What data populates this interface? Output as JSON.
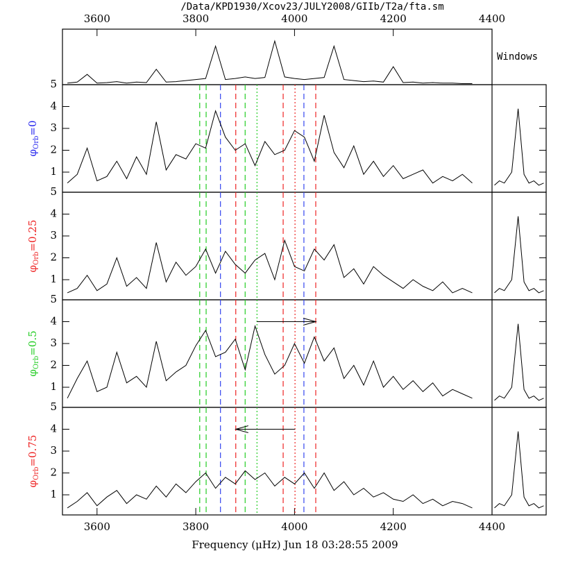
{
  "chart_data": {
    "type": "line",
    "title": "/Data/KPD1930/Xcov23/JULY2008/GIIb/T2a/fta.sm",
    "xlabel": "Frequency (μHz) Jun 18 03:28:55 2009",
    "window_label": "Windows",
    "line_color": "#000000",
    "xlim": [
      3530,
      4400
    ],
    "xticks": [
      3600,
      3800,
      4000,
      4200,
      4400
    ],
    "ylim": [
      0.08,
      5
    ],
    "yticks": [
      1,
      2,
      3,
      4,
      5
    ],
    "x": [
      3540,
      3560,
      3580,
      3600,
      3620,
      3640,
      3660,
      3680,
      3700,
      3720,
      3740,
      3760,
      3780,
      3800,
      3820,
      3840,
      3860,
      3880,
      3900,
      3920,
      3940,
      3960,
      3980,
      4000,
      4020,
      4040,
      4060,
      4080,
      4100,
      4120,
      4140,
      4160,
      4180,
      4200,
      4220,
      4240,
      4260,
      4280,
      4300,
      4320,
      4340,
      4360
    ],
    "top_ylim": [
      0,
      1
    ],
    "top_values": [
      0.03,
      0.05,
      0.2,
      0.03,
      0.04,
      0.06,
      0.03,
      0.05,
      0.04,
      0.3,
      0.05,
      0.06,
      0.08,
      0.1,
      0.12,
      0.75,
      0.1,
      0.12,
      0.15,
      0.12,
      0.14,
      0.85,
      0.15,
      0.12,
      0.1,
      0.12,
      0.14,
      0.75,
      0.1,
      0.08,
      0.06,
      0.07,
      0.05,
      0.35,
      0.04,
      0.05,
      0.03,
      0.04,
      0.03,
      0.03,
      0.02,
      0.02
    ],
    "window_xlim": [
      4400,
      4510
    ],
    "window_x": [
      4405,
      4415,
      4425,
      4440,
      4453,
      4465,
      4475,
      4485,
      4495,
      4505
    ],
    "window_values": [
      0.4,
      0.6,
      0.5,
      1.0,
      3.9,
      0.9,
      0.5,
      0.6,
      0.4,
      0.5
    ],
    "markers": [
      {
        "x": 3808,
        "color": "#22cc22",
        "style": "dashed"
      },
      {
        "x": 3821,
        "color": "#22cc22",
        "style": "dashed"
      },
      {
        "x": 3850,
        "color": "#3344ee",
        "style": "dashed"
      },
      {
        "x": 3881,
        "color": "#ee2222",
        "style": "dashed"
      },
      {
        "x": 3900,
        "color": "#22cc22",
        "style": "dashed"
      },
      {
        "x": 3924,
        "color": "#22cc22",
        "style": "dotted"
      },
      {
        "x": 3977,
        "color": "#ee2222",
        "style": "dashed"
      },
      {
        "x": 4001,
        "color": "#ee2222",
        "style": "dotted"
      },
      {
        "x": 4019,
        "color": "#3344ee",
        "style": "dashed"
      },
      {
        "x": 4043,
        "color": "#ee2222",
        "style": "dashed"
      }
    ],
    "panels": [
      {
        "label": {
          "symbol": "φ",
          "sub": "Orb",
          "value": "=0"
        },
        "color": "#2222ee",
        "values": [
          0.5,
          0.9,
          2.1,
          0.6,
          0.8,
          1.5,
          0.7,
          1.7,
          0.9,
          3.3,
          1.1,
          1.8,
          1.6,
          2.3,
          2.1,
          3.8,
          2.6,
          2.0,
          2.3,
          1.3,
          2.4,
          1.8,
          2.0,
          2.9,
          2.6,
          1.5,
          3.6,
          1.9,
          1.2,
          2.2,
          0.9,
          1.5,
          0.8,
          1.3,
          0.7,
          0.9,
          1.1,
          0.5,
          0.8,
          0.6,
          0.9,
          0.5
        ]
      },
      {
        "label": {
          "symbol": "φ",
          "sub": "Orb",
          "value": "=0.25"
        },
        "color": "#ee2222",
        "values": [
          0.4,
          0.6,
          1.2,
          0.5,
          0.8,
          2.0,
          0.7,
          1.1,
          0.6,
          2.7,
          0.9,
          1.8,
          1.2,
          1.6,
          2.4,
          1.3,
          2.3,
          1.7,
          1.3,
          1.9,
          2.2,
          1.0,
          2.8,
          1.6,
          1.4,
          2.4,
          1.9,
          2.6,
          1.1,
          1.5,
          0.8,
          1.6,
          1.2,
          0.9,
          0.6,
          1.0,
          0.7,
          0.5,
          0.9,
          0.4,
          0.6,
          0.4
        ]
      },
      {
        "label": {
          "symbol": "φ",
          "sub": "Orb",
          "value": "=0.5"
        },
        "color": "#22cc22",
        "values": [
          0.5,
          1.4,
          2.2,
          0.8,
          1.0,
          2.6,
          1.2,
          1.5,
          1.0,
          3.1,
          1.3,
          1.7,
          2.0,
          2.9,
          3.6,
          2.4,
          2.6,
          3.2,
          1.8,
          3.8,
          2.5,
          1.6,
          2.0,
          3.0,
          2.1,
          3.3,
          2.2,
          2.8,
          1.4,
          2.0,
          1.1,
          2.2,
          1.0,
          1.5,
          0.9,
          1.3,
          0.8,
          1.2,
          0.6,
          0.9,
          0.7,
          0.5
        ],
        "arrow": {
          "from": 3924,
          "to": 4043,
          "y": 4
        }
      },
      {
        "label": {
          "symbol": "φ",
          "sub": "Orb",
          "value": "=0.75"
        },
        "color": "#ee2222",
        "values": [
          0.4,
          0.7,
          1.1,
          0.5,
          0.9,
          1.2,
          0.6,
          1.0,
          0.8,
          1.4,
          0.9,
          1.5,
          1.1,
          1.6,
          2.0,
          1.3,
          1.8,
          1.5,
          2.1,
          1.7,
          2.0,
          1.4,
          1.8,
          1.5,
          2.0,
          1.3,
          2.0,
          1.2,
          1.6,
          1.0,
          1.3,
          0.9,
          1.1,
          0.8,
          0.7,
          1.0,
          0.6,
          0.8,
          0.5,
          0.7,
          0.6,
          0.4
        ],
        "arrow": {
          "from": 4001,
          "to": 3881,
          "y": 4
        }
      }
    ]
  }
}
